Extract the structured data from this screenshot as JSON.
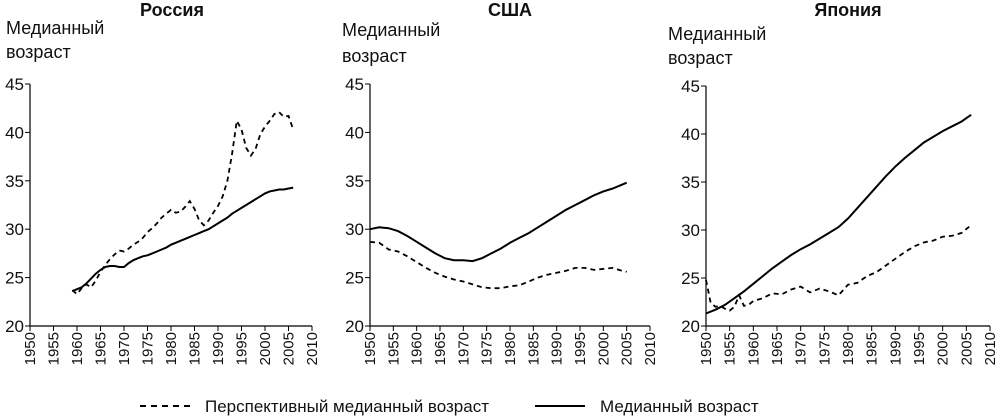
{
  "legend": {
    "items": [
      {
        "label": "Перспективный медианный возраст",
        "style": "dashed"
      },
      {
        "label": "Медианный возраст",
        "style": "solid"
      }
    ]
  },
  "colors": {
    "line": "#000000",
    "axis": "#000000"
  },
  "chart_data": [
    {
      "type": "line",
      "title": "Россия",
      "ylabel": "Медианный возраст",
      "xlabel": "",
      "xlim": [
        1950,
        2010
      ],
      "ylim": [
        20,
        45
      ],
      "xticks": [
        1950,
        1955,
        1960,
        1965,
        1970,
        1975,
        1980,
        1985,
        1990,
        1995,
        2000,
        2005,
        2010
      ],
      "yticks": [
        20,
        25,
        30,
        35,
        40,
        45
      ],
      "grid": false,
      "series": [
        {
          "name": "Перспективный медианный возраст",
          "style": "dashed",
          "x": [
            1959,
            1960,
            1961,
            1962,
            1963,
            1964,
            1965,
            1966,
            1967,
            1968,
            1969,
            1970,
            1971,
            1972,
            1973,
            1974,
            1975,
            1976,
            1977,
            1978,
            1979,
            1980,
            1981,
            1982,
            1983,
            1984,
            1985,
            1986,
            1987,
            1988,
            1989,
            1990,
            1991,
            1992,
            1993,
            1994,
            1995,
            1996,
            1997,
            1998,
            1999,
            2000,
            2001,
            2002,
            2003,
            2004,
            2005,
            2006
          ],
          "y": [
            23.7,
            23.3,
            23.9,
            24.3,
            24.0,
            24.7,
            25.6,
            26.3,
            26.9,
            27.4,
            27.8,
            27.7,
            28.0,
            28.4,
            28.7,
            29.1,
            29.7,
            30.1,
            30.6,
            31.2,
            31.6,
            32.0,
            31.7,
            31.8,
            32.3,
            32.9,
            32.1,
            30.9,
            30.4,
            30.9,
            31.7,
            32.4,
            33.4,
            35.0,
            37.8,
            41.2,
            40.3,
            38.4,
            37.6,
            38.3,
            39.8,
            40.6,
            41.2,
            41.9,
            42.1,
            41.6,
            41.7,
            40.3
          ]
        },
        {
          "name": "Медианный возраст",
          "style": "solid",
          "x": [
            1959,
            1960,
            1961,
            1962,
            1963,
            1964,
            1965,
            1966,
            1967,
            1968,
            1969,
            1970,
            1971,
            1972,
            1973,
            1974,
            1975,
            1976,
            1977,
            1978,
            1979,
            1980,
            1981,
            1982,
            1983,
            1984,
            1985,
            1986,
            1987,
            1988,
            1989,
            1990,
            1991,
            1992,
            1993,
            1994,
            1995,
            1996,
            1997,
            1998,
            1999,
            2000,
            2001,
            2002,
            2003,
            2004,
            2005,
            2006
          ],
          "y": [
            23.6,
            23.8,
            24.0,
            24.4,
            24.9,
            25.4,
            25.8,
            26.1,
            26.2,
            26.2,
            26.1,
            26.1,
            26.5,
            26.8,
            27.0,
            27.2,
            27.3,
            27.5,
            27.7,
            27.9,
            28.1,
            28.4,
            28.6,
            28.8,
            29.0,
            29.2,
            29.4,
            29.6,
            29.8,
            30.0,
            30.3,
            30.6,
            30.9,
            31.2,
            31.6,
            31.9,
            32.2,
            32.5,
            32.8,
            33.1,
            33.4,
            33.7,
            33.9,
            34.0,
            34.1,
            34.1,
            34.2,
            34.3
          ]
        }
      ]
    },
    {
      "type": "line",
      "title": "США",
      "ylabel": "Медианный возраст",
      "xlabel": "",
      "xlim": [
        1950,
        2010
      ],
      "ylim": [
        20,
        45
      ],
      "xticks": [
        1950,
        1955,
        1960,
        1965,
        1970,
        1975,
        1980,
        1985,
        1990,
        1995,
        2000,
        2005,
        2010
      ],
      "yticks": [
        20,
        25,
        30,
        35,
        40,
        45
      ],
      "grid": false,
      "series": [
        {
          "name": "Перспективный медианный возраст",
          "style": "dashed",
          "x": [
            1950,
            1952,
            1954,
            1956,
            1958,
            1960,
            1962,
            1964,
            1966,
            1968,
            1970,
            1972,
            1974,
            1976,
            1978,
            1980,
            1982,
            1984,
            1986,
            1988,
            1990,
            1992,
            1994,
            1996,
            1998,
            2000,
            2002,
            2004,
            2005
          ],
          "y": [
            28.7,
            28.6,
            27.9,
            27.7,
            27.2,
            26.6,
            26.0,
            25.5,
            25.1,
            24.8,
            24.6,
            24.3,
            24.0,
            23.9,
            23.9,
            24.1,
            24.2,
            24.6,
            25.0,
            25.3,
            25.5,
            25.7,
            26.0,
            26.0,
            25.8,
            25.9,
            26.0,
            25.7,
            25.6
          ]
        },
        {
          "name": "Медианный возраст",
          "style": "solid",
          "x": [
            1950,
            1952,
            1954,
            1956,
            1958,
            1960,
            1962,
            1964,
            1966,
            1968,
            1970,
            1972,
            1974,
            1976,
            1978,
            1980,
            1982,
            1984,
            1986,
            1988,
            1990,
            1992,
            1994,
            1996,
            1998,
            2000,
            2002,
            2004,
            2005
          ],
          "y": [
            30.0,
            30.2,
            30.1,
            29.8,
            29.3,
            28.7,
            28.1,
            27.5,
            27.0,
            26.8,
            26.8,
            26.7,
            27.0,
            27.5,
            28.0,
            28.6,
            29.1,
            29.6,
            30.2,
            30.8,
            31.4,
            32.0,
            32.5,
            33.0,
            33.5,
            33.9,
            34.2,
            34.6,
            34.8
          ]
        }
      ]
    },
    {
      "type": "line",
      "title": "Япония",
      "ylabel": "Медианный возраст",
      "xlabel": "",
      "xlim": [
        1950,
        2010
      ],
      "ylim": [
        20,
        45
      ],
      "xticks": [
        1950,
        1955,
        1960,
        1965,
        1970,
        1975,
        1980,
        1985,
        1990,
        1995,
        2000,
        2005,
        2010
      ],
      "yticks": [
        20,
        25,
        30,
        35,
        40,
        45
      ],
      "grid": false,
      "series": [
        {
          "name": "Перспективный медианный возраст",
          "style": "dashed",
          "x": [
            1950,
            1951,
            1952,
            1953,
            1954,
            1955,
            1956,
            1957,
            1958,
            1959,
            1960,
            1962,
            1964,
            1966,
            1968,
            1970,
            1972,
            1974,
            1976,
            1978,
            1980,
            1982,
            1984,
            1986,
            1988,
            1990,
            1992,
            1994,
            1996,
            1998,
            2000,
            2002,
            2004,
            2006
          ],
          "y": [
            24.8,
            22.4,
            22.0,
            22.1,
            21.8,
            21.6,
            22.0,
            23.2,
            22.1,
            22.2,
            22.6,
            22.9,
            23.4,
            23.3,
            23.8,
            24.1,
            23.5,
            23.9,
            23.6,
            23.2,
            24.3,
            24.5,
            25.2,
            25.6,
            26.3,
            27.0,
            27.7,
            28.3,
            28.7,
            28.9,
            29.3,
            29.4,
            29.7,
            30.5
          ]
        },
        {
          "name": "Медианный возраст",
          "style": "solid",
          "x": [
            1950,
            1952,
            1954,
            1956,
            1958,
            1960,
            1962,
            1964,
            1966,
            1968,
            1970,
            1972,
            1974,
            1976,
            1978,
            1980,
            1982,
            1984,
            1986,
            1988,
            1990,
            1992,
            1994,
            1996,
            1998,
            2000,
            2002,
            2004,
            2006
          ],
          "y": [
            21.3,
            21.7,
            22.2,
            22.9,
            23.6,
            24.4,
            25.2,
            26.0,
            26.7,
            27.4,
            28.0,
            28.5,
            29.1,
            29.7,
            30.3,
            31.2,
            32.3,
            33.4,
            34.5,
            35.6,
            36.6,
            37.5,
            38.3,
            39.1,
            39.7,
            40.3,
            40.8,
            41.3,
            42.0
          ]
        }
      ]
    }
  ]
}
